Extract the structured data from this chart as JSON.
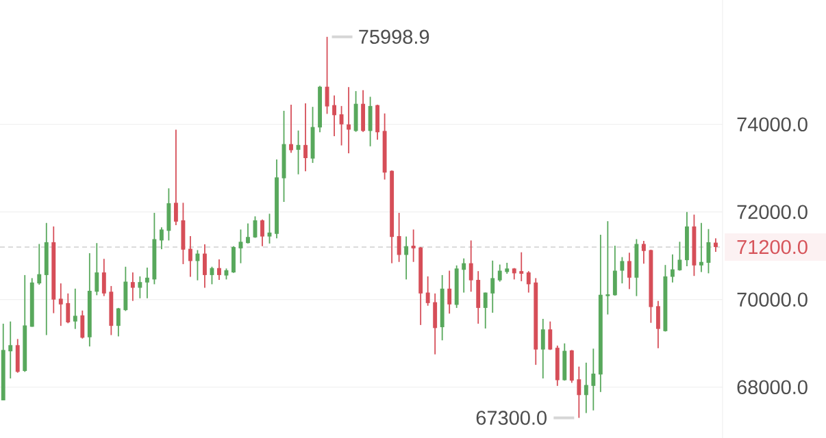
{
  "chart_data": {
    "type": "candlestick",
    "categories": [
      null,
      null,
      null,
      null,
      null,
      null,
      null,
      null,
      null,
      null,
      null,
      null,
      null,
      null,
      null,
      null,
      null,
      null,
      null,
      null,
      null,
      null,
      null,
      null,
      null,
      null,
      null,
      null,
      null,
      null,
      null,
      null,
      null,
      null,
      null,
      null,
      null,
      null,
      null,
      null,
      null,
      null,
      null,
      null,
      null,
      null,
      null,
      null,
      null,
      null,
      null,
      null,
      null,
      null,
      null,
      null,
      null,
      null,
      null,
      null,
      null,
      null,
      null,
      null,
      null,
      null,
      null,
      null,
      null,
      null,
      null,
      null,
      null,
      null,
      null,
      null,
      null,
      null,
      null,
      null,
      null,
      null,
      null,
      null,
      null,
      null,
      null,
      null,
      null,
      null,
      null,
      null,
      null,
      null,
      null,
      null,
      null,
      null,
      null,
      null
    ],
    "ohlc": [
      [
        67700,
        69450,
        67700,
        68850
      ],
      [
        68820,
        69500,
        68200,
        68960
      ],
      [
        68960,
        69100,
        68330,
        68350
      ],
      [
        68370,
        70560,
        68350,
        69410
      ],
      [
        69380,
        70490,
        69380,
        70390
      ],
      [
        70370,
        71270,
        70340,
        70580
      ],
      [
        70560,
        71750,
        69190,
        71310
      ],
      [
        71310,
        71670,
        69690,
        70000
      ],
      [
        70020,
        70370,
        69400,
        69890
      ],
      [
        69920,
        70140,
        69460,
        69480
      ],
      [
        69500,
        70250,
        69330,
        69630
      ],
      [
        69640,
        69750,
        69110,
        69130
      ],
      [
        69140,
        71060,
        68930,
        70200
      ],
      [
        70180,
        71290,
        70100,
        70620
      ],
      [
        70620,
        70930,
        70080,
        70140
      ],
      [
        70180,
        70310,
        69190,
        69400
      ],
      [
        69400,
        69810,
        69160,
        69800
      ],
      [
        69760,
        70750,
        69740,
        70410
      ],
      [
        70400,
        70620,
        69970,
        70270
      ],
      [
        70270,
        70530,
        70030,
        70400
      ],
      [
        70390,
        70730,
        70030,
        70500
      ],
      [
        70460,
        71980,
        70350,
        71380
      ],
      [
        71350,
        71650,
        71150,
        71600
      ],
      [
        71570,
        72540,
        71350,
        72200
      ],
      [
        72210,
        73880,
        71700,
        71780
      ],
      [
        71810,
        72210,
        70810,
        71140
      ],
      [
        71160,
        71450,
        70520,
        70880
      ],
      [
        70880,
        71130,
        70440,
        71050
      ],
      [
        71050,
        71260,
        70270,
        70560
      ],
      [
        70560,
        70750,
        70350,
        70720
      ],
      [
        70720,
        70920,
        70450,
        70560
      ],
      [
        70550,
        70710,
        70460,
        70670
      ],
      [
        70620,
        71220,
        70610,
        71200
      ],
      [
        71170,
        71600,
        70830,
        71320
      ],
      [
        71290,
        71740,
        71280,
        71430
      ],
      [
        71420,
        71900,
        71410,
        71810
      ],
      [
        71810,
        71830,
        71220,
        71440
      ],
      [
        71440,
        71960,
        71280,
        71530
      ],
      [
        71500,
        73200,
        71400,
        72790
      ],
      [
        72770,
        74310,
        72230,
        73550
      ],
      [
        73550,
        74450,
        73350,
        73410
      ],
      [
        73420,
        73860,
        72860,
        73530
      ],
      [
        73530,
        74480,
        72930,
        73230
      ],
      [
        73220,
        74400,
        73120,
        73940
      ],
      [
        73930,
        74880,
        73820,
        74860
      ],
      [
        74860,
        75998.9,
        74240,
        74410
      ],
      [
        74440,
        74660,
        73730,
        74210
      ],
      [
        74230,
        74420,
        73520,
        74000
      ],
      [
        74000,
        74850,
        73340,
        73880
      ],
      [
        73850,
        74760,
        73830,
        74470
      ],
      [
        74470,
        74780,
        73830,
        73850
      ],
      [
        73850,
        74630,
        73500,
        74420
      ],
      [
        74440,
        74450,
        73650,
        73820
      ],
      [
        73850,
        74250,
        72740,
        72900
      ],
      [
        72940,
        72950,
        70830,
        71430
      ],
      [
        71450,
        71980,
        70860,
        71020
      ],
      [
        71020,
        71440,
        70460,
        71220
      ],
      [
        71230,
        71600,
        70860,
        71170
      ],
      [
        71190,
        71200,
        69420,
        70140
      ],
      [
        70160,
        70530,
        69860,
        69920
      ],
      [
        69940,
        70140,
        68750,
        69350
      ],
      [
        69370,
        70560,
        69070,
        70250
      ],
      [
        70250,
        70660,
        69680,
        69890
      ],
      [
        69880,
        70780,
        69810,
        70710
      ],
      [
        70680,
        70940,
        70160,
        70830
      ],
      [
        70830,
        71350,
        70180,
        70440
      ],
      [
        70450,
        70650,
        69450,
        69810
      ],
      [
        69810,
        70160,
        69340,
        70160
      ],
      [
        70140,
        70890,
        69700,
        70490
      ],
      [
        70440,
        70800,
        70410,
        70660
      ],
      [
        70630,
        70840,
        70590,
        70710
      ],
      [
        70710,
        70720,
        70460,
        70600
      ],
      [
        70650,
        71080,
        70420,
        70590
      ],
      [
        70620,
        70650,
        70160,
        70350
      ],
      [
        70390,
        70490,
        68510,
        68860
      ],
      [
        68860,
        69560,
        68200,
        69320
      ],
      [
        69320,
        69500,
        68850,
        68860
      ],
      [
        68900,
        68950,
        68030,
        68160
      ],
      [
        68160,
        69000,
        68150,
        68830
      ],
      [
        68840,
        68850,
        68100,
        68150
      ],
      [
        68180,
        68470,
        67300,
        67820
      ],
      [
        67820,
        68560,
        67410,
        68050
      ],
      [
        68030,
        68880,
        67470,
        68310
      ],
      [
        68290,
        71480,
        67890,
        70110
      ],
      [
        70080,
        71790,
        69660,
        70120
      ],
      [
        70100,
        71230,
        70090,
        70660
      ],
      [
        70660,
        70970,
        70370,
        70880
      ],
      [
        70880,
        71070,
        70240,
        70500
      ],
      [
        70500,
        71380,
        70080,
        71270
      ],
      [
        71270,
        71340,
        70820,
        71110
      ],
      [
        71130,
        71140,
        69470,
        69830
      ],
      [
        69850,
        69970,
        68890,
        69330
      ],
      [
        69280,
        70790,
        69270,
        70530
      ],
      [
        70520,
        71030,
        70390,
        70690
      ],
      [
        70670,
        71320,
        70660,
        70910
      ],
      [
        70900,
        72000,
        70760,
        71670
      ],
      [
        71670,
        71940,
        70540,
        70780
      ],
      [
        70780,
        71750,
        70630,
        70860
      ],
      [
        70840,
        71610,
        70600,
        71310
      ],
      [
        71300,
        71400,
        71090,
        71200
      ]
    ],
    "colors": [
      "#58a85c",
      "#58a85c",
      "#d64e58",
      "#58a85c",
      "#58a85c",
      "#58a85c",
      "#58a85c",
      "#d64e58",
      "#d64e58",
      "#d64e58",
      "#58a85c",
      "#d64e58",
      "#58a85c",
      "#58a85c",
      "#d64e58",
      "#d64e58",
      "#58a85c",
      "#58a85c",
      "#d64e58",
      "#58a85c",
      "#58a85c",
      "#58a85c",
      "#58a85c",
      "#58a85c",
      "#d64e58",
      "#d64e58",
      "#d64e58",
      "#58a85c",
      "#d64e58",
      "#58a85c",
      "#d64e58",
      "#58a85c",
      "#58a85c",
      "#58a85c",
      "#58a85c",
      "#58a85c",
      "#d64e58",
      "#58a85c",
      "#58a85c",
      "#58a85c",
      "#d64e58",
      "#58a85c",
      "#d64e58",
      "#58a85c",
      "#58a85c",
      "#d64e58",
      "#d64e58",
      "#d64e58",
      "#d64e58",
      "#58a85c",
      "#d64e58",
      "#58a85c",
      "#d64e58",
      "#d64e58",
      "#d64e58",
      "#d64e58",
      "#58a85c",
      "#d64e58",
      "#d64e58",
      "#d64e58",
      "#d64e58",
      "#58a85c",
      "#d64e58",
      "#58a85c",
      "#58a85c",
      "#d64e58",
      "#d64e58",
      "#58a85c",
      "#58a85c",
      "#58a85c",
      "#58a85c",
      "#d64e58",
      "#d64e58",
      "#d64e58",
      "#d64e58",
      "#58a85c",
      "#d64e58",
      "#d64e58",
      "#58a85c",
      "#d64e58",
      "#d64e58",
      "#58a85c",
      "#58a85c",
      "#58a85c",
      "#58a85c",
      "#58a85c",
      "#58a85c",
      "#d64e58",
      "#58a85c",
      "#d64e58",
      "#d64e58",
      "#d64e58",
      "#58a85c",
      "#58a85c",
      "#58a85c",
      "#58a85c",
      "#d64e58",
      "#58a85c",
      "#58a85c",
      "#d64e58"
    ],
    "ylim": [
      66840,
      76840
    ],
    "yticks": [
      {
        "value": 68000,
        "label": "68000.0"
      },
      {
        "value": 70000,
        "label": "70000.0"
      },
      {
        "value": 72000,
        "label": "72000.0"
      },
      {
        "value": 74000,
        "label": "74000.0"
      }
    ],
    "grid": "y",
    "tick_labels": "y",
    "ref_lines": [
      {
        "axis": "y",
        "value": 71200,
        "label": "71200.0",
        "color": "#b8b8b8",
        "line_style": "dashed"
      }
    ],
    "annotations": [
      "75998.9",
      "67300.0"
    ]
  }
}
